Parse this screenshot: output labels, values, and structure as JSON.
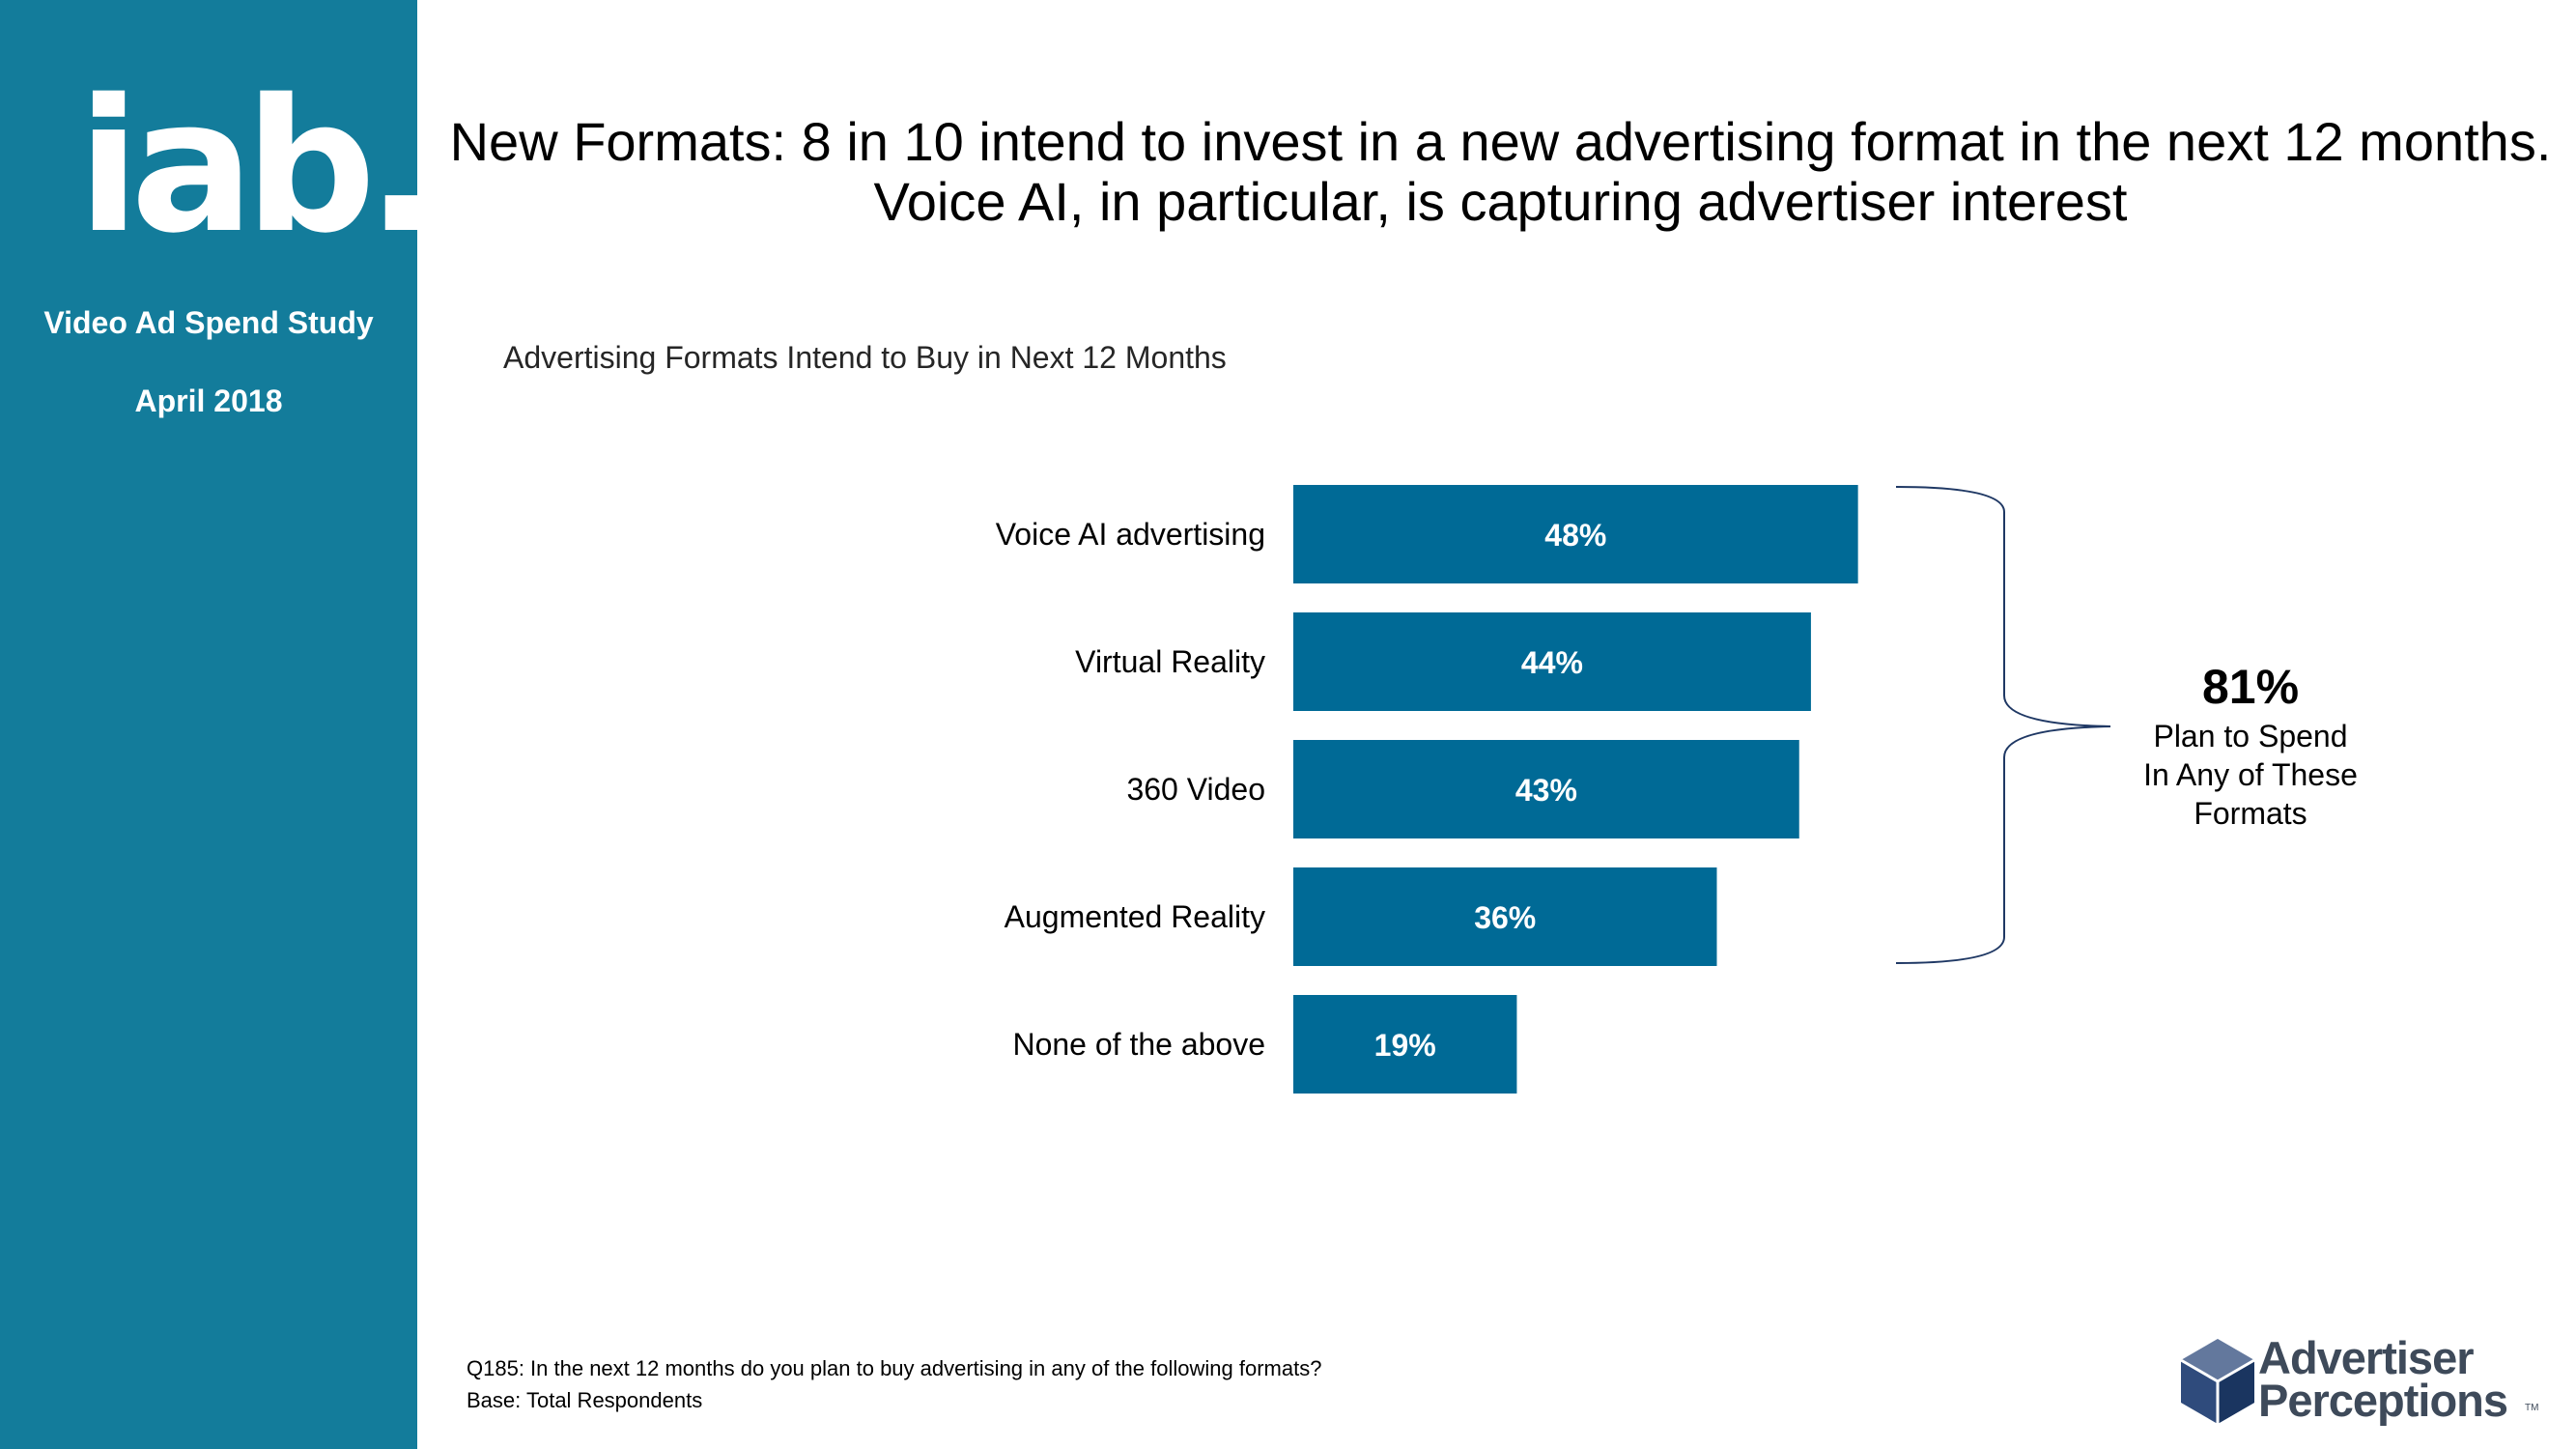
{
  "sidebar": {
    "logo_text": "iab.",
    "study_title": "Video Ad Spend Study",
    "study_date": "April 2018"
  },
  "headline": {
    "line1": "New Formats:  8 in 10 intend to invest in a new advertising format in the next 12 months.",
    "line2": "Voice AI, in particular, is capturing advertiser interest"
  },
  "chart_data": {
    "type": "bar",
    "orientation": "horizontal",
    "title": "Advertising Formats Intend to Buy in Next 12 Months",
    "categories": [
      "Voice AI advertising",
      "Virtual Reality",
      "360 Video",
      "Augmented Reality",
      "None of the above"
    ],
    "values": [
      48,
      44,
      43,
      36,
      19
    ],
    "value_labels": [
      "48%",
      "44%",
      "43%",
      "36%",
      "19%"
    ],
    "xlabel": "",
    "ylabel": "",
    "xlim": [
      0,
      100
    ],
    "bar_color": "#006a96",
    "label_color": "#ffffff",
    "grid": false,
    "legend": "none"
  },
  "callout": {
    "value": "81%",
    "line1": "Plan to Spend",
    "line2": "In Any of These",
    "line3": "Formats",
    "bracket_color": "#1f3864"
  },
  "footnotes": {
    "question": "Q185: In the next 12 months do you plan to buy advertising in any of the following formats?",
    "base": "Base: Total Respondents"
  },
  "brand": {
    "line1": "Advertiser",
    "line2": "Perceptions",
    "trademark": "TM",
    "sidebar_color": "#137c9b"
  }
}
